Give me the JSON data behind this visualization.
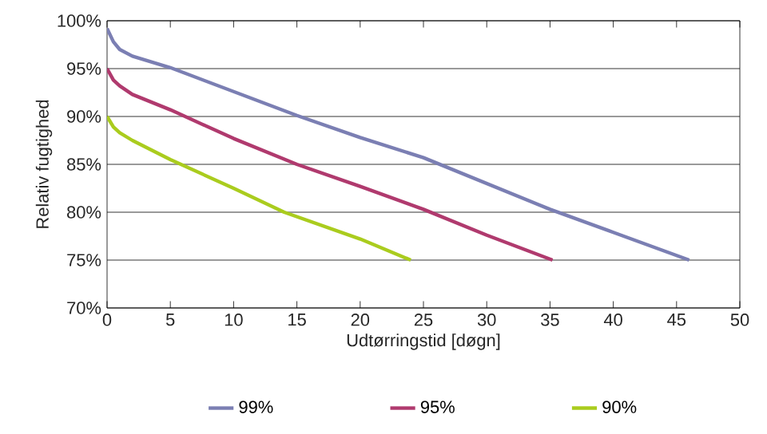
{
  "chart_data": {
    "type": "line",
    "xlabel": "Udtørringstid [døgn]",
    "ylabel": "Relativ fugtighed",
    "xlim": [
      0,
      50
    ],
    "xticks": [
      0,
      5,
      10,
      15,
      20,
      25,
      30,
      35,
      40,
      45,
      50
    ],
    "ylim": [
      70,
      100
    ],
    "yticks": [
      {
        "value": 70,
        "label": "70%"
      },
      {
        "value": 75,
        "label": "75%"
      },
      {
        "value": 80,
        "label": "80%"
      },
      {
        "value": 85,
        "label": "85%"
      },
      {
        "value": 90,
        "label": "90%"
      },
      {
        "value": 95,
        "label": "95%"
      },
      {
        "value": 100,
        "label": "100%"
      }
    ],
    "grid": "y",
    "legend": "bottom",
    "marker": "none",
    "line_style": "solid",
    "series": [
      {
        "name": "99%",
        "color": "#7b7fb3",
        "x": [
          0,
          0.5,
          1,
          2,
          5,
          10,
          15,
          20,
          25,
          30,
          35,
          40,
          46
        ],
        "values": [
          99.2,
          97.8,
          97.0,
          96.3,
          95.1,
          92.6,
          90.1,
          87.8,
          85.7,
          83.0,
          80.3,
          77.9,
          75
        ]
      },
      {
        "name": "95%",
        "color": "#b03a6e",
        "x": [
          0,
          0.5,
          1,
          2,
          5,
          10,
          15,
          20,
          25,
          30,
          35.2
        ],
        "values": [
          95,
          93.8,
          93.2,
          92.3,
          90.7,
          87.7,
          85,
          82.7,
          80.3,
          77.6,
          75
        ]
      },
      {
        "name": "90%",
        "color": "#aacc1e",
        "x": [
          0,
          0.5,
          1,
          2,
          5,
          10,
          14,
          20,
          24
        ],
        "values": [
          90,
          88.9,
          88.3,
          87.5,
          85.5,
          82.5,
          80,
          77.2,
          75
        ]
      }
    ]
  }
}
